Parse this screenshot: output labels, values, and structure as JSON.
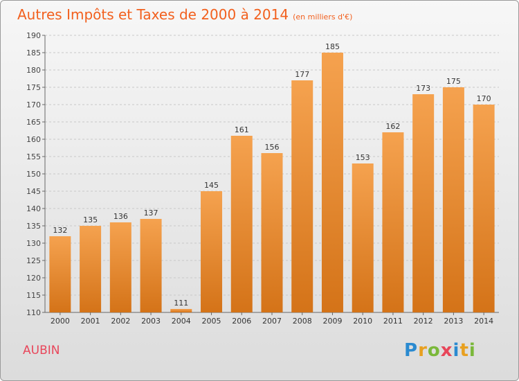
{
  "title": "Autres Impôts et Taxes de 2000 à 2014",
  "subtitle": "(en milliers d'€)",
  "place_label": "AUBIN",
  "logo": {
    "letters": [
      "P",
      "r",
      "o",
      "x",
      "i",
      "t",
      "i"
    ],
    "colors": [
      "#2a8ad0",
      "#e8a020",
      "#7ab83a",
      "#e8465a",
      "#2a8ad0",
      "#e8a020",
      "#7ab83a"
    ]
  },
  "colors": {
    "title": "#f2601e",
    "bar_light": "#f5a24f",
    "bar_dark": "#d47318",
    "place": "#e8465a"
  },
  "chart_data": {
    "type": "bar",
    "categories": [
      "2000",
      "2001",
      "2002",
      "2003",
      "2004",
      "2005",
      "2006",
      "2007",
      "2008",
      "2009",
      "2010",
      "2011",
      "2012",
      "2013",
      "2014"
    ],
    "values": [
      132,
      135,
      136,
      137,
      111,
      145,
      161,
      156,
      177,
      185,
      153,
      162,
      173,
      175,
      170
    ],
    "ylim": [
      110,
      190
    ],
    "yticks": [
      110,
      115,
      120,
      125,
      130,
      135,
      140,
      145,
      150,
      155,
      160,
      165,
      170,
      175,
      180,
      185,
      190
    ],
    "grid": true
  }
}
